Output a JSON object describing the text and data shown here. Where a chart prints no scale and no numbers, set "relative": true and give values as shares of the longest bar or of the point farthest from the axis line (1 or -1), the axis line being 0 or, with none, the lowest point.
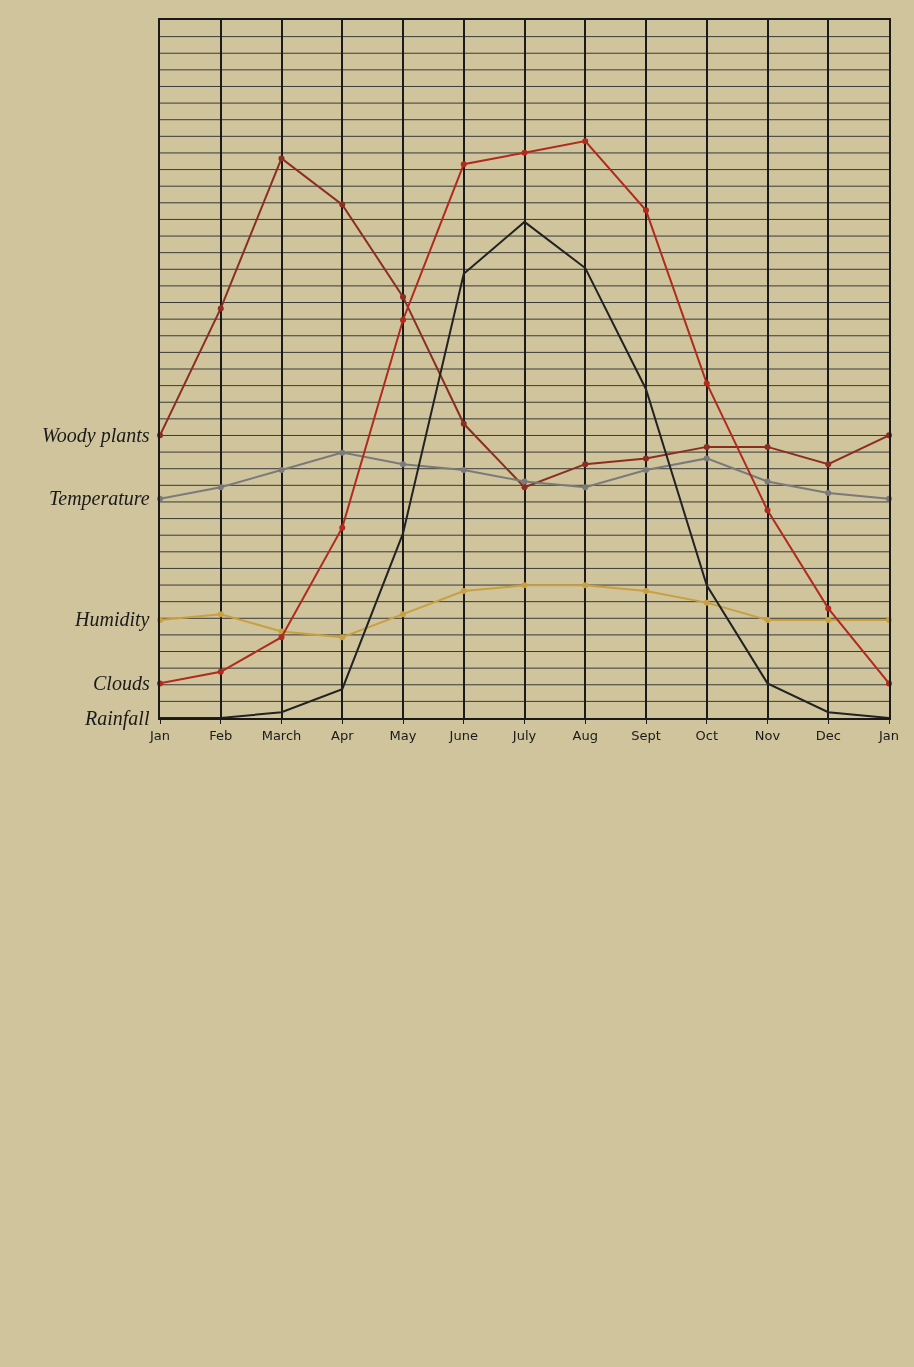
{
  "chart_data": {
    "type": "line",
    "relative": true,
    "categories": [
      "Jan",
      "Feb",
      "March",
      "Apr",
      "May",
      "June",
      "July",
      "Aug",
      "Sept",
      "Oct",
      "Nov",
      "Dec",
      "Jan"
    ],
    "grid": "x",
    "marker": "circle",
    "line_style": "solid",
    "series": [
      {
        "name": "Woody plants",
        "color": "#8b2e22",
        "values": [
          0.49,
          0.71,
          0.97,
          0.89,
          0.73,
          0.51,
          0.4,
          0.44,
          0.45,
          0.47,
          0.47,
          0.44,
          0.49
        ]
      },
      {
        "name": "Temperature",
        "color": "#7a7a7a",
        "values": [
          0.38,
          0.4,
          0.43,
          0.46,
          0.44,
          0.43,
          0.41,
          0.4,
          0.43,
          0.45,
          0.41,
          0.39,
          0.38
        ]
      },
      {
        "name": "Humidity",
        "color": "#c8a040",
        "values": [
          0.17,
          0.18,
          0.15,
          0.14,
          0.18,
          0.22,
          0.23,
          0.23,
          0.22,
          0.2,
          0.17,
          0.17,
          0.17
        ]
      },
      {
        "name": "Clouds",
        "color": "#b02a1e",
        "values": [
          0.06,
          0.08,
          0.14,
          0.33,
          0.69,
          0.96,
          0.98,
          1.0,
          0.88,
          0.58,
          0.36,
          0.19,
          0.06
        ]
      },
      {
        "name": "Rainfall",
        "color": "#222222",
        "marker": "none",
        "values": [
          0,
          0,
          0.01,
          0.05,
          0.32,
          0.77,
          0.86,
          0.78,
          0.57,
          0.23,
          0.06,
          0.01,
          0
        ]
      }
    ]
  }
}
